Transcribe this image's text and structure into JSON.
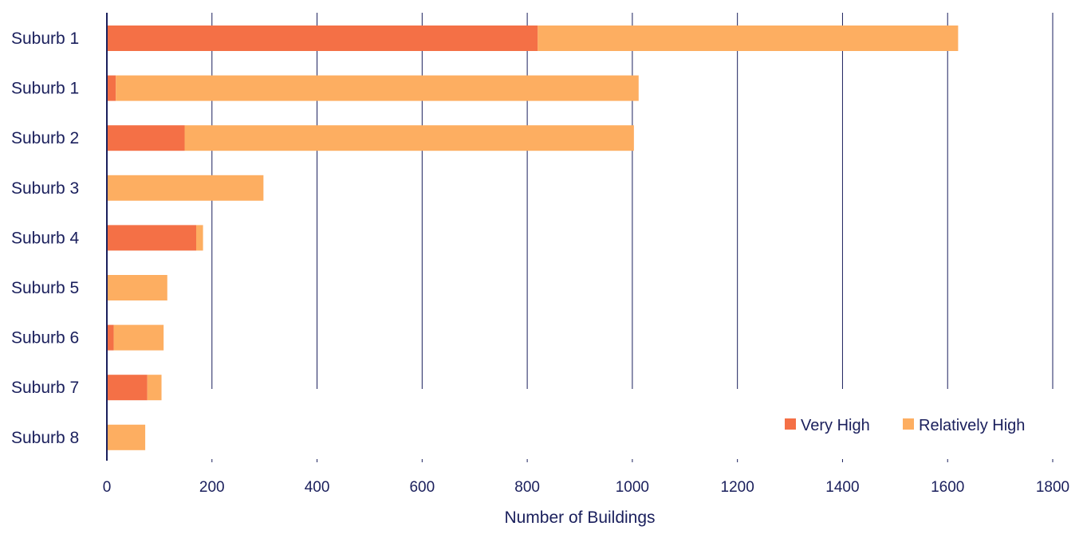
{
  "chart_data": {
    "type": "bar",
    "orientation": "horizontal",
    "stacked": true,
    "title": "",
    "xlabel": "Number of Buildings",
    "ylabel": "",
    "xlim": [
      0,
      1800
    ],
    "xticks": [
      0,
      200,
      400,
      600,
      800,
      1000,
      1200,
      1400,
      1600,
      1800
    ],
    "grid": true,
    "legend_position": "bottom-right",
    "categories": [
      "Suburb 1",
      "Suburb 1",
      "Suburb 2",
      "Suburb 3",
      "Suburb 4",
      "Suburb 5",
      "Suburb 6",
      "Suburb 7",
      "Suburb 8"
    ],
    "series": [
      {
        "name": "Very High",
        "color": "#f47046",
        "values": [
          820,
          17,
          148,
          0,
          170,
          0,
          13,
          77,
          0
        ]
      },
      {
        "name": "Relatively High",
        "color": "#fdae61",
        "values": [
          800,
          995,
          855,
          298,
          13,
          115,
          95,
          27,
          73
        ]
      }
    ]
  }
}
